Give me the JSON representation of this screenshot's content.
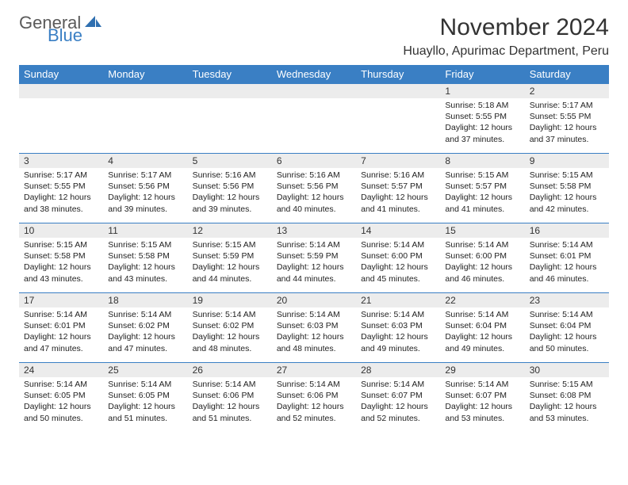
{
  "brand": {
    "line1": "General",
    "line2": "Blue",
    "icon_color": "#2f6fb0"
  },
  "title": "November 2024",
  "location": "Huayllo, Apurimac Department, Peru",
  "colors": {
    "header_bg": "#3a7fc4",
    "header_text": "#ffffff",
    "daynum_bg": "#ececec",
    "border": "#3a7fc4",
    "text": "#222222"
  },
  "day_headers": [
    "Sunday",
    "Monday",
    "Tuesday",
    "Wednesday",
    "Thursday",
    "Friday",
    "Saturday"
  ],
  "weeks": [
    [
      {
        "num": "",
        "lines": []
      },
      {
        "num": "",
        "lines": []
      },
      {
        "num": "",
        "lines": []
      },
      {
        "num": "",
        "lines": []
      },
      {
        "num": "",
        "lines": []
      },
      {
        "num": "1",
        "lines": [
          "Sunrise: 5:18 AM",
          "Sunset: 5:55 PM",
          "Daylight: 12 hours",
          "and 37 minutes."
        ]
      },
      {
        "num": "2",
        "lines": [
          "Sunrise: 5:17 AM",
          "Sunset: 5:55 PM",
          "Daylight: 12 hours",
          "and 37 minutes."
        ]
      }
    ],
    [
      {
        "num": "3",
        "lines": [
          "Sunrise: 5:17 AM",
          "Sunset: 5:55 PM",
          "Daylight: 12 hours",
          "and 38 minutes."
        ]
      },
      {
        "num": "4",
        "lines": [
          "Sunrise: 5:17 AM",
          "Sunset: 5:56 PM",
          "Daylight: 12 hours",
          "and 39 minutes."
        ]
      },
      {
        "num": "5",
        "lines": [
          "Sunrise: 5:16 AM",
          "Sunset: 5:56 PM",
          "Daylight: 12 hours",
          "and 39 minutes."
        ]
      },
      {
        "num": "6",
        "lines": [
          "Sunrise: 5:16 AM",
          "Sunset: 5:56 PM",
          "Daylight: 12 hours",
          "and 40 minutes."
        ]
      },
      {
        "num": "7",
        "lines": [
          "Sunrise: 5:16 AM",
          "Sunset: 5:57 PM",
          "Daylight: 12 hours",
          "and 41 minutes."
        ]
      },
      {
        "num": "8",
        "lines": [
          "Sunrise: 5:15 AM",
          "Sunset: 5:57 PM",
          "Daylight: 12 hours",
          "and 41 minutes."
        ]
      },
      {
        "num": "9",
        "lines": [
          "Sunrise: 5:15 AM",
          "Sunset: 5:58 PM",
          "Daylight: 12 hours",
          "and 42 minutes."
        ]
      }
    ],
    [
      {
        "num": "10",
        "lines": [
          "Sunrise: 5:15 AM",
          "Sunset: 5:58 PM",
          "Daylight: 12 hours",
          "and 43 minutes."
        ]
      },
      {
        "num": "11",
        "lines": [
          "Sunrise: 5:15 AM",
          "Sunset: 5:58 PM",
          "Daylight: 12 hours",
          "and 43 minutes."
        ]
      },
      {
        "num": "12",
        "lines": [
          "Sunrise: 5:15 AM",
          "Sunset: 5:59 PM",
          "Daylight: 12 hours",
          "and 44 minutes."
        ]
      },
      {
        "num": "13",
        "lines": [
          "Sunrise: 5:14 AM",
          "Sunset: 5:59 PM",
          "Daylight: 12 hours",
          "and 44 minutes."
        ]
      },
      {
        "num": "14",
        "lines": [
          "Sunrise: 5:14 AM",
          "Sunset: 6:00 PM",
          "Daylight: 12 hours",
          "and 45 minutes."
        ]
      },
      {
        "num": "15",
        "lines": [
          "Sunrise: 5:14 AM",
          "Sunset: 6:00 PM",
          "Daylight: 12 hours",
          "and 46 minutes."
        ]
      },
      {
        "num": "16",
        "lines": [
          "Sunrise: 5:14 AM",
          "Sunset: 6:01 PM",
          "Daylight: 12 hours",
          "and 46 minutes."
        ]
      }
    ],
    [
      {
        "num": "17",
        "lines": [
          "Sunrise: 5:14 AM",
          "Sunset: 6:01 PM",
          "Daylight: 12 hours",
          "and 47 minutes."
        ]
      },
      {
        "num": "18",
        "lines": [
          "Sunrise: 5:14 AM",
          "Sunset: 6:02 PM",
          "Daylight: 12 hours",
          "and 47 minutes."
        ]
      },
      {
        "num": "19",
        "lines": [
          "Sunrise: 5:14 AM",
          "Sunset: 6:02 PM",
          "Daylight: 12 hours",
          "and 48 minutes."
        ]
      },
      {
        "num": "20",
        "lines": [
          "Sunrise: 5:14 AM",
          "Sunset: 6:03 PM",
          "Daylight: 12 hours",
          "and 48 minutes."
        ]
      },
      {
        "num": "21",
        "lines": [
          "Sunrise: 5:14 AM",
          "Sunset: 6:03 PM",
          "Daylight: 12 hours",
          "and 49 minutes."
        ]
      },
      {
        "num": "22",
        "lines": [
          "Sunrise: 5:14 AM",
          "Sunset: 6:04 PM",
          "Daylight: 12 hours",
          "and 49 minutes."
        ]
      },
      {
        "num": "23",
        "lines": [
          "Sunrise: 5:14 AM",
          "Sunset: 6:04 PM",
          "Daylight: 12 hours",
          "and 50 minutes."
        ]
      }
    ],
    [
      {
        "num": "24",
        "lines": [
          "Sunrise: 5:14 AM",
          "Sunset: 6:05 PM",
          "Daylight: 12 hours",
          "and 50 minutes."
        ]
      },
      {
        "num": "25",
        "lines": [
          "Sunrise: 5:14 AM",
          "Sunset: 6:05 PM",
          "Daylight: 12 hours",
          "and 51 minutes."
        ]
      },
      {
        "num": "26",
        "lines": [
          "Sunrise: 5:14 AM",
          "Sunset: 6:06 PM",
          "Daylight: 12 hours",
          "and 51 minutes."
        ]
      },
      {
        "num": "27",
        "lines": [
          "Sunrise: 5:14 AM",
          "Sunset: 6:06 PM",
          "Daylight: 12 hours",
          "and 52 minutes."
        ]
      },
      {
        "num": "28",
        "lines": [
          "Sunrise: 5:14 AM",
          "Sunset: 6:07 PM",
          "Daylight: 12 hours",
          "and 52 minutes."
        ]
      },
      {
        "num": "29",
        "lines": [
          "Sunrise: 5:14 AM",
          "Sunset: 6:07 PM",
          "Daylight: 12 hours",
          "and 53 minutes."
        ]
      },
      {
        "num": "30",
        "lines": [
          "Sunrise: 5:15 AM",
          "Sunset: 6:08 PM",
          "Daylight: 12 hours",
          "and 53 minutes."
        ]
      }
    ]
  ]
}
